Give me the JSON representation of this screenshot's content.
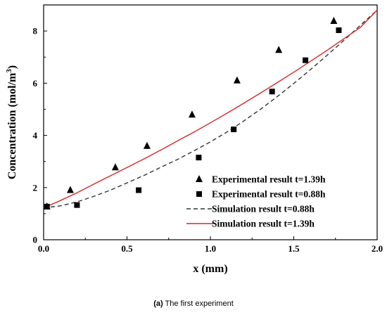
{
  "caption": {
    "letter": "(a)",
    "text": "The first experiment"
  },
  "chart_data": {
    "type": "scatter",
    "xlabel": "x (mm)",
    "ylabel_main": "Concentration (mol/m",
    "ylabel_sup": "3",
    "ylabel_close": ")",
    "xlim": [
      0,
      2.0
    ],
    "ylim": [
      0,
      9
    ],
    "xticks": [
      0.0,
      0.5,
      1.0,
      1.5,
      2.0
    ],
    "xtick_labels": [
      "0.0",
      "0.5",
      "1.0",
      "1.5",
      "2.0"
    ],
    "yticks": [
      0,
      2,
      4,
      6,
      8
    ],
    "ytick_labels": [
      "0",
      "2",
      "4",
      "6",
      "8"
    ],
    "grid": false,
    "legend_position": "lower-right",
    "series": [
      {
        "name": "Experimental result t=1.39h",
        "kind": "markers",
        "marker": "triangle",
        "color": "#000000",
        "x": [
          0.02,
          0.16,
          0.43,
          0.62,
          0.89,
          1.16,
          1.41,
          1.74
        ],
        "y": [
          1.27,
          1.9,
          2.77,
          3.59,
          4.79,
          6.1,
          7.27,
          8.38
        ]
      },
      {
        "name": "Experimental result t=0.88h",
        "kind": "markers",
        "marker": "square",
        "color": "#000000",
        "x": [
          0.02,
          0.2,
          0.57,
          0.93,
          1.14,
          1.37,
          1.57,
          1.77
        ],
        "y": [
          1.27,
          1.33,
          1.9,
          3.15,
          4.23,
          5.68,
          6.88,
          8.03
        ]
      },
      {
        "name": "Simulation result  t=0.88h",
        "kind": "line",
        "style": "dashed",
        "color": "#333333",
        "x": [
          0.0,
          0.1,
          0.2,
          0.3,
          0.4,
          0.5,
          0.6,
          0.7,
          0.8,
          0.9,
          1.0,
          1.1,
          1.2,
          1.3,
          1.4,
          1.5,
          1.6,
          1.7,
          1.8,
          1.9,
          2.0
        ],
        "y": [
          1.22,
          1.3,
          1.45,
          1.66,
          1.9,
          2.18,
          2.46,
          2.77,
          3.07,
          3.4,
          3.75,
          4.13,
          4.55,
          5.0,
          5.48,
          5.99,
          6.52,
          7.07,
          7.64,
          8.22,
          8.8
        ]
      },
      {
        "name": "Simulation result  t=1.39h",
        "kind": "line",
        "style": "solid",
        "color": "#d62728",
        "x": [
          0.0,
          0.1,
          0.2,
          0.3,
          0.4,
          0.5,
          0.6,
          0.7,
          0.8,
          0.9,
          1.0,
          1.1,
          1.2,
          1.3,
          1.4,
          1.5,
          1.6,
          1.7,
          1.8,
          1.9,
          2.0
        ],
        "y": [
          1.22,
          1.5,
          1.8,
          2.13,
          2.45,
          2.77,
          3.09,
          3.43,
          3.78,
          4.12,
          4.48,
          4.85,
          5.23,
          5.62,
          6.02,
          6.42,
          6.84,
          7.26,
          7.7,
          8.14,
          8.8
        ]
      }
    ]
  }
}
